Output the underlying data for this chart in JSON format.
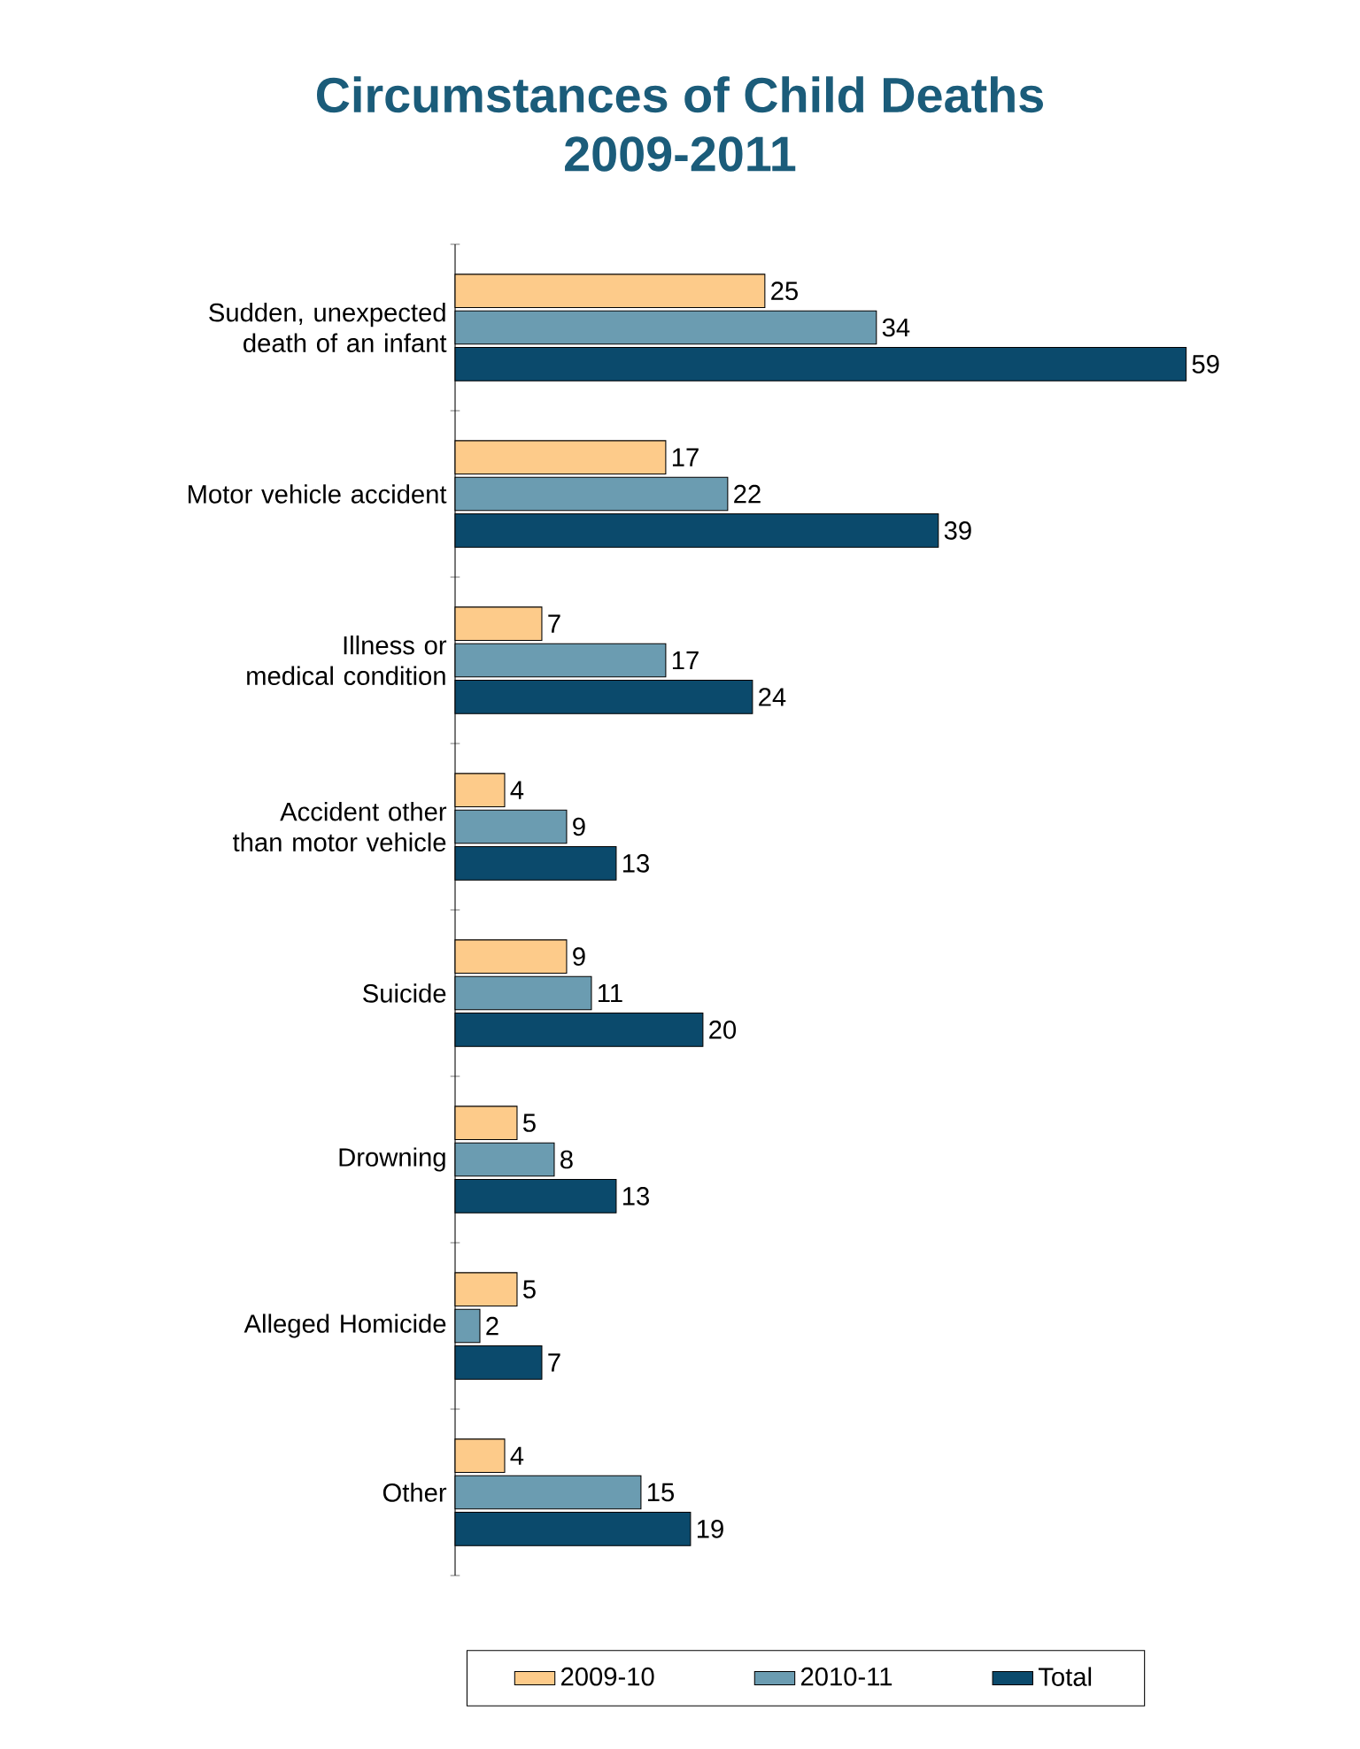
{
  "chart_data": {
    "type": "bar",
    "orientation": "horizontal",
    "title": "Circumstances of Child Deaths\n2009-2011",
    "categories": [
      "Sudden, unexpected death of an infant",
      "Motor vehicle accident",
      "Illness or medical condition",
      "Accident other than motor vehicle",
      "Suicide",
      "Drowning",
      "Alleged Homicide",
      "Other"
    ],
    "series": [
      {
        "name": "2009-10",
        "color": "#fdcb8a",
        "values": [
          25,
          17,
          7,
          4,
          9,
          5,
          5,
          4
        ]
      },
      {
        "name": "2010-11",
        "color": "#6b9cb1",
        "values": [
          34,
          22,
          17,
          9,
          11,
          8,
          2,
          15
        ]
      },
      {
        "name": "Total",
        "color": "#0b4a6c",
        "values": [
          59,
          39,
          24,
          13,
          20,
          13,
          7,
          19
        ]
      }
    ],
    "data_labels": true,
    "legend": "bottom"
  }
}
